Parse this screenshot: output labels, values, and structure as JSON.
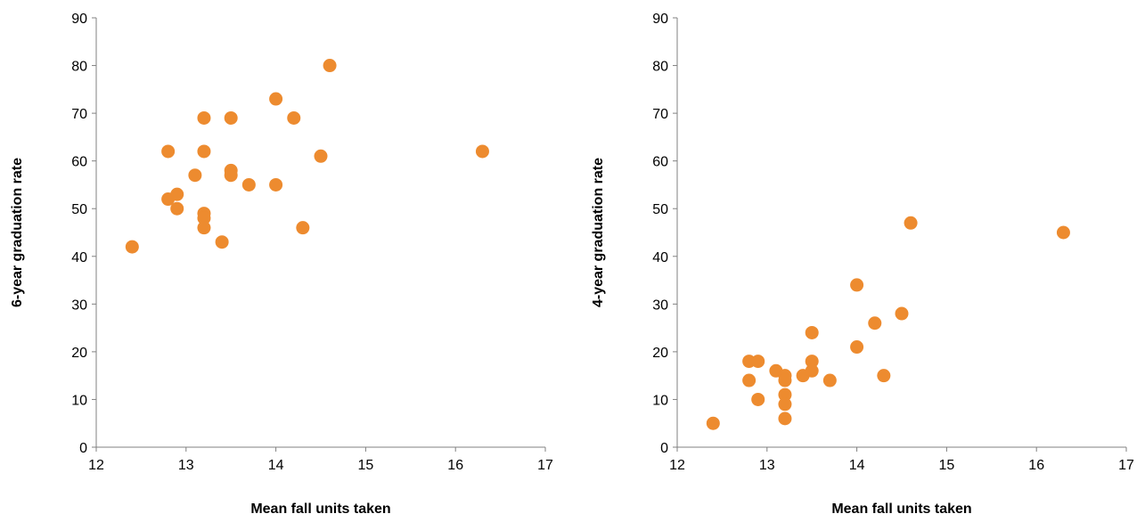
{
  "chart_data": [
    {
      "type": "scatter",
      "title": "",
      "xlabel": "Mean fall units taken",
      "ylabel": "6-year graduation rate",
      "xlim": [
        12,
        17
      ],
      "ylim": [
        0,
        90
      ],
      "x_ticks": [
        "12",
        "13",
        "14",
        "15",
        "16",
        "17"
      ],
      "y_ticks": [
        "0",
        "10",
        "20",
        "30",
        "40",
        "50",
        "60",
        "70",
        "80",
        "90"
      ],
      "grid": false,
      "legend": "none",
      "color": "#ED8B2F",
      "series": [
        {
          "points": [
            [
              12.4,
              42
            ],
            [
              12.8,
              62
            ],
            [
              12.8,
              52
            ],
            [
              12.9,
              53
            ],
            [
              12.9,
              50
            ],
            [
              13.1,
              57
            ],
            [
              13.2,
              69
            ],
            [
              13.2,
              62
            ],
            [
              13.2,
              49
            ],
            [
              13.2,
              48
            ],
            [
              13.2,
              46
            ],
            [
              13.4,
              43
            ],
            [
              13.5,
              69
            ],
            [
              13.5,
              58
            ],
            [
              13.5,
              57
            ],
            [
              13.7,
              55
            ],
            [
              14.0,
              73
            ],
            [
              14.0,
              55
            ],
            [
              14.2,
              69
            ],
            [
              14.3,
              46
            ],
            [
              14.5,
              61
            ],
            [
              14.6,
              80
            ],
            [
              16.3,
              62
            ]
          ]
        }
      ]
    },
    {
      "type": "scatter",
      "title": "",
      "xlabel": "Mean fall units taken",
      "ylabel": "4-year graduation rate",
      "xlim": [
        12,
        17
      ],
      "ylim": [
        0,
        90
      ],
      "x_ticks": [
        "12",
        "13",
        "14",
        "15",
        "16",
        "17"
      ],
      "y_ticks": [
        "0",
        "10",
        "20",
        "30",
        "40",
        "50",
        "60",
        "70",
        "80",
        "90"
      ],
      "grid": false,
      "legend": "none",
      "color": "#ED8B2F",
      "series": [
        {
          "points": [
            [
              12.4,
              5
            ],
            [
              12.8,
              18
            ],
            [
              12.8,
              14
            ],
            [
              12.9,
              18
            ],
            [
              12.9,
              10
            ],
            [
              13.1,
              16
            ],
            [
              13.2,
              15
            ],
            [
              13.2,
              14
            ],
            [
              13.2,
              11
            ],
            [
              13.2,
              9
            ],
            [
              13.2,
              6
            ],
            [
              13.4,
              15
            ],
            [
              13.5,
              24
            ],
            [
              13.5,
              18
            ],
            [
              13.5,
              16
            ],
            [
              13.7,
              14
            ],
            [
              14.0,
              34
            ],
            [
              14.0,
              21
            ],
            [
              14.2,
              26
            ],
            [
              14.3,
              15
            ],
            [
              14.5,
              28
            ],
            [
              14.6,
              47
            ],
            [
              16.3,
              45
            ]
          ]
        }
      ]
    }
  ]
}
